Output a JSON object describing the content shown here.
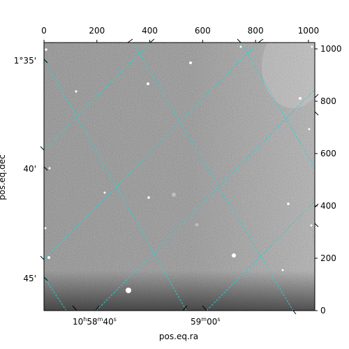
{
  "figure": {
    "xlabel": "pos.eq.ra",
    "ylabel": "pos.eq.dec"
  },
  "pixel_axes": {
    "top_ticks": [
      "0",
      "200",
      "400",
      "600",
      "800",
      "1000"
    ],
    "top_values": [
      0,
      200,
      400,
      600,
      800,
      1000
    ],
    "right_ticks": [
      "0",
      "200",
      "400",
      "600",
      "800",
      "1000"
    ],
    "right_values": [
      0,
      200,
      400,
      600,
      800,
      1000
    ],
    "x_range": [
      0,
      1024
    ],
    "y_range": [
      0,
      1024
    ]
  },
  "world_axes": {
    "ra_ticks": [
      {
        "hours": "10",
        "minutes": "58",
        "seconds": "40",
        "h": "h",
        "m": "m",
        "s": "s"
      },
      {
        "minutes": "59",
        "seconds": "00",
        "m": "m",
        "s": "s"
      }
    ],
    "dec_ticks": [
      "1°35'",
      "40'",
      "45'"
    ]
  },
  "colors": {
    "grid": "#22d7d7",
    "background": "#ffffff",
    "image_mid": "#6e6e6e"
  },
  "chart_data": {
    "type": "heatmap",
    "title": "",
    "xlabel": "pos.eq.ra",
    "ylabel": "pos.eq.dec",
    "xlim": [
      0,
      1024
    ],
    "ylim": [
      0,
      1024
    ],
    "grid": true,
    "colormap": "gray"
  }
}
